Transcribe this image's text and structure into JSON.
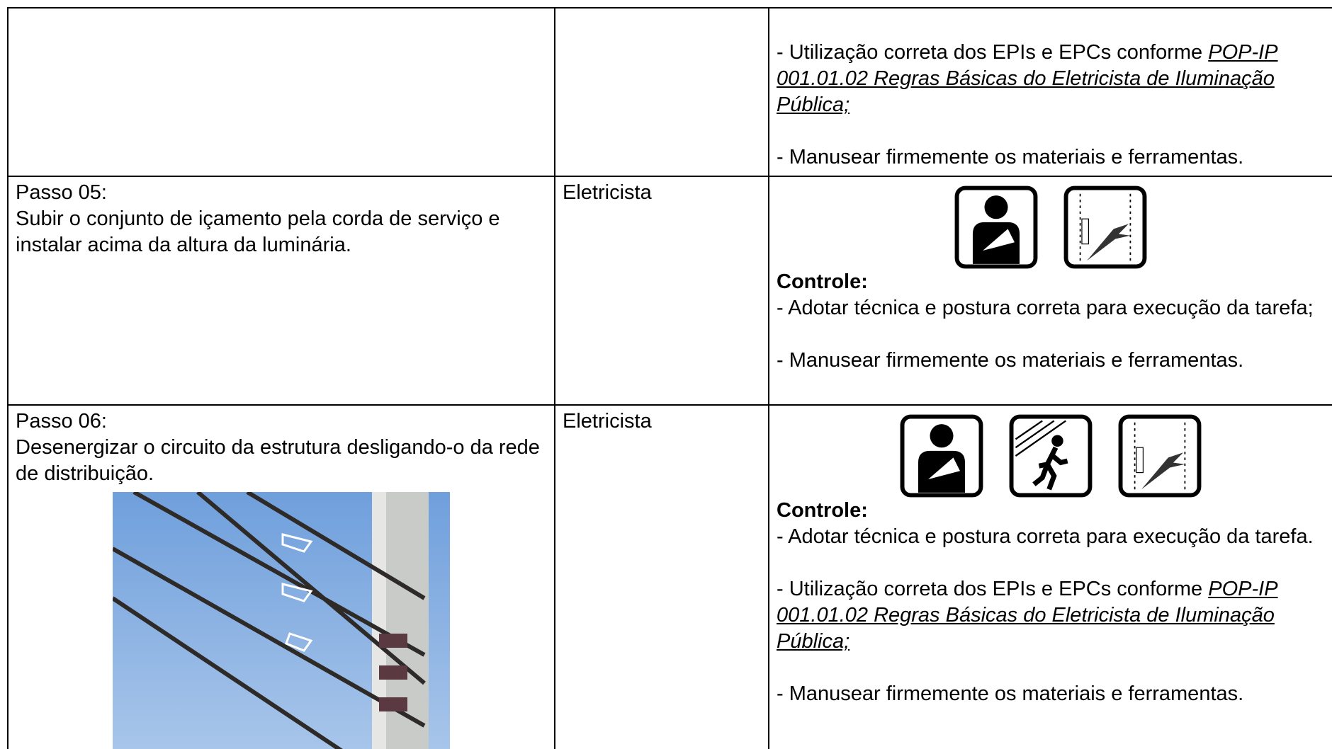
{
  "table": {
    "rows": [
      {
        "controls": [
          {
            "text": "- Utilização correta dos EPIs e EPCs conforme ",
            "link": "POP-IP 001.01.02 Regras Básicas do Eletricista de Iluminação Pública;"
          },
          {
            "text": "- Manusear firmemente os materiais e ferramentas."
          }
        ]
      },
      {
        "step": "Passo 05:",
        "task": "Subir o conjunto de içamento pela corda de serviço e instalar acima da altura da luminária.",
        "role": "Eletricista",
        "control_heading": "Controle:",
        "controls": [
          {
            "text": "- Adotar técnica e postura correta para execução da tarefa;"
          },
          {
            "text": "- Manusear firmemente os materiais e ferramentas."
          }
        ]
      },
      {
        "step": "Passo 06:",
        "task": "Desenergizar o circuito da estrutura desligando-o da rede de distribuição.",
        "role": "Eletricista",
        "control_heading": "Controle:",
        "controls": [
          {
            "text": "- Adotar técnica e postura correta para execução da tarefa."
          },
          {
            "text": "- Utilização correta dos EPIs e EPCs conforme ",
            "link": "POP-IP 001.01.02 Regras Básicas do Eletricista de Iluminação Pública;"
          },
          {
            "text": "- Manusear firmemente os materiais e ferramentas."
          }
        ]
      }
    ]
  }
}
